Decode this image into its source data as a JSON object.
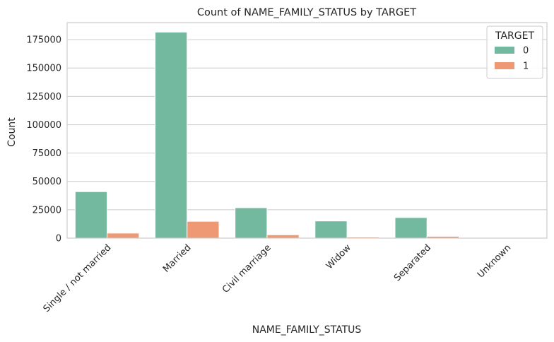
{
  "chart_data": {
    "type": "bar",
    "title": "Count of NAME_FAMILY_STATUS by TARGET",
    "xlabel": "NAME_FAMILY_STATUS",
    "ylabel": "Count",
    "categories": [
      "Single / not married",
      "Married",
      "Civil marriage",
      "Widow",
      "Separated",
      "Unknown"
    ],
    "series": [
      {
        "name": "0",
        "color": "#72b9a0",
        "values": [
          40987,
          181582,
          26814,
          15151,
          18150,
          2
        ]
      },
      {
        "name": "1",
        "color": "#ee9874",
        "values": [
          4457,
          14850,
          2961,
          937,
          1620,
          0
        ]
      }
    ],
    "ylim": [
      0,
      190000
    ],
    "yticks": [
      0,
      25000,
      50000,
      75000,
      100000,
      125000,
      150000,
      175000
    ],
    "grid": true,
    "legend": {
      "title": "TARGET",
      "placement": "top-right"
    }
  }
}
